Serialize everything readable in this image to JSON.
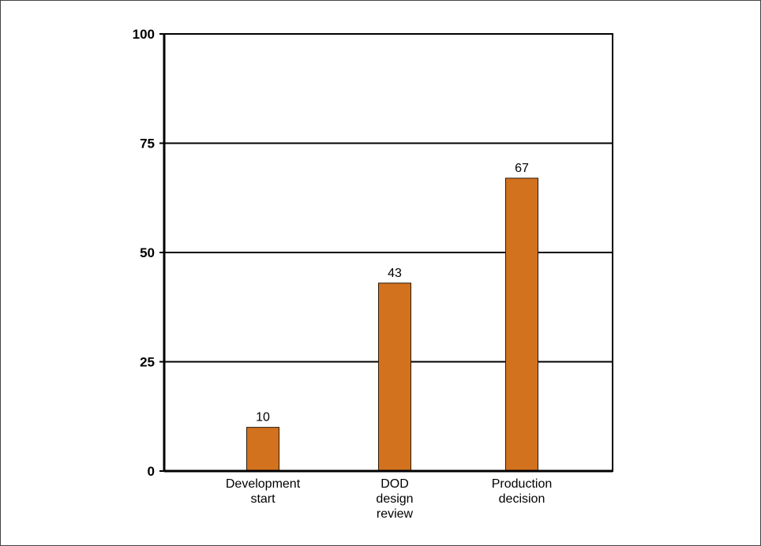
{
  "chart_data": {
    "type": "bar",
    "title": "",
    "xlabel": "",
    "ylabel": "",
    "categories": [
      [
        "Development",
        "start"
      ],
      [
        "DOD",
        "design",
        "review"
      ],
      [
        "Production",
        "decision"
      ]
    ],
    "values": [
      10,
      43,
      67
    ],
    "data_labels": [
      "10",
      "43",
      "67"
    ],
    "ylim": [
      0,
      100
    ],
    "yticks": [
      0,
      25,
      50,
      75,
      100
    ],
    "ytick_labels": [
      "0",
      "25",
      "50",
      "75",
      "100"
    ],
    "grid": true,
    "legend": "none",
    "colors": {
      "bar_fill": "#D2721E",
      "bar_stroke": "#2a1a0a",
      "axis": "#000000",
      "grid": "#000000"
    }
  }
}
